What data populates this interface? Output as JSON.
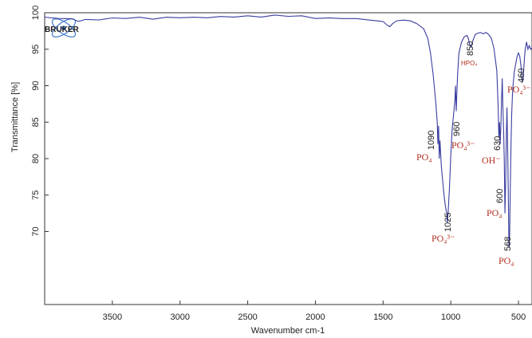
{
  "logo": {
    "text": "BRUKER"
  },
  "chart_data": {
    "type": "line",
    "title": "",
    "xlabel": "Wavenumber cm-1",
    "ylabel": "Transmittance [%]",
    "xlim": [
      4000,
      400
    ],
    "ylim": [
      60,
      100
    ],
    "x_reversed": true,
    "x_ticks": [
      3500,
      3000,
      2500,
      2000,
      1500,
      1000,
      500
    ],
    "y_ticks": [
      70,
      75,
      80,
      85,
      90,
      95,
      100
    ],
    "grid": false,
    "line_color": "#3a3ca0",
    "label_color": "#b03020",
    "series": [
      {
        "x": [
          4000,
          3900,
          3800,
          3750,
          3700,
          3600,
          3500,
          3400,
          3300,
          3200,
          3100,
          3000,
          2900,
          2800,
          2700,
          2600,
          2500,
          2400,
          2300,
          2200,
          2100,
          2000,
          1900,
          1800,
          1700,
          1650,
          1600,
          1550,
          1500,
          1470,
          1450,
          1430,
          1400,
          1350,
          1300,
          1250,
          1200,
          1170,
          1150,
          1130,
          1110,
          1100,
          1095,
          1090,
          1085,
          1080,
          1070,
          1060,
          1050,
          1040,
          1030,
          1025,
          1020,
          1010,
          1000,
          990,
          980,
          970,
          965,
          960,
          955,
          950,
          940,
          920,
          900,
          880,
          870,
          860,
          850,
          845,
          840,
          820,
          800,
          780,
          760,
          740,
          720,
          700,
          680,
          660,
          650,
          645,
          640,
          635,
          630,
          625,
          620,
          615,
          610,
          605,
          600,
          595,
          590,
          585,
          580,
          575,
          570,
          568,
          565,
          560,
          555,
          550,
          545,
          540,
          530,
          520,
          510,
          500,
          490,
          480,
          475,
          470,
          465,
          460,
          455,
          450,
          440,
          430,
          420,
          410,
          400
        ],
        "y": [
          99.4,
          99.3,
          99.1,
          98.9,
          99.0,
          99.1,
          99.2,
          99.3,
          99.3,
          99.2,
          99.3,
          99.4,
          99.3,
          99.4,
          99.4,
          99.5,
          99.5,
          99.5,
          99.6,
          99.6,
          99.5,
          99.3,
          99.3,
          99.2,
          99.2,
          99.1,
          99.0,
          98.9,
          98.8,
          98.3,
          98.1,
          98.5,
          98.9,
          99.0,
          98.9,
          98.5,
          97.8,
          96.5,
          94.5,
          91.5,
          87.5,
          85.0,
          82.0,
          84.5,
          80.0,
          82.5,
          79.0,
          77.0,
          75.0,
          73.5,
          72.5,
          71.2,
          72.5,
          76.0,
          80.5,
          84.0,
          86.0,
          88.0,
          90.0,
          86.5,
          89.0,
          91.5,
          94.5,
          96.0,
          96.7,
          96.9,
          96.5,
          95.6,
          95.3,
          95.6,
          96.0,
          97.0,
          97.2,
          97.3,
          97.1,
          97.3,
          97.0,
          96.5,
          95.0,
          92.0,
          87.0,
          83.0,
          85.0,
          82.0,
          84.5,
          88.0,
          91.0,
          87.0,
          84.0,
          80.0,
          72.5,
          76.5,
          83.0,
          87.0,
          82.0,
          75.0,
          68.0,
          67.8,
          70.0,
          76.0,
          82.0,
          86.0,
          88.5,
          90.0,
          92.0,
          93.0,
          94.0,
          94.5,
          94.0,
          92.5,
          91.0,
          90.5,
          91.0,
          92.5,
          94.0,
          95.0,
          96.0,
          95.0,
          95.5,
          95.0,
          95.2
        ]
      }
    ],
    "annotations": [
      {
        "number": "1090",
        "group": "PO₄"
      },
      {
        "number": "1025",
        "group": "PO₄³⁻"
      },
      {
        "number": "960",
        "group": "PO₄³⁻"
      },
      {
        "number": "850",
        "group": "HPO₄"
      },
      {
        "number": "630",
        "group": "OH⁻"
      },
      {
        "number": "600",
        "group": "PO₄"
      },
      {
        "number": "568",
        "group": "PO₄"
      },
      {
        "number": "460",
        "group": "PO₄³⁻"
      }
    ]
  }
}
